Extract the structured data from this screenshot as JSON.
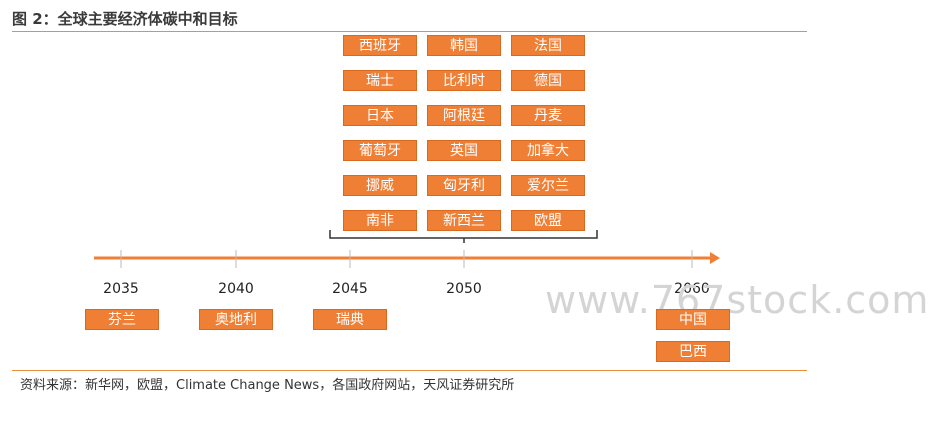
{
  "title": "图 2：全球主要经济体碳中和目标",
  "watermark": "www.767stock.com",
  "source": "资料来源：新华网，欧盟，Climate Change News，各国政府网站，天风证券研究所",
  "years": [
    "2035",
    "2040",
    "2045",
    "2050",
    "2060"
  ],
  "groups": {
    "y2035": [
      "芬兰"
    ],
    "y2040": [
      "奥地利"
    ],
    "y2045": [
      "瑞典"
    ],
    "y2050": [
      [
        "西班牙",
        "韩国",
        "法国"
      ],
      [
        "瑞士",
        "比利时",
        "德国"
      ],
      [
        "日本",
        "阿根廷",
        "丹麦"
      ],
      [
        "葡萄牙",
        "英国",
        "加拿大"
      ],
      [
        "挪威",
        "匈牙利",
        "爱尔兰"
      ],
      [
        "南非",
        "新西兰",
        "欧盟"
      ]
    ],
    "y2060": [
      "中国",
      "巴西"
    ]
  },
  "colors": {
    "accent": "#f07f36",
    "rule": "#e8913c"
  }
}
